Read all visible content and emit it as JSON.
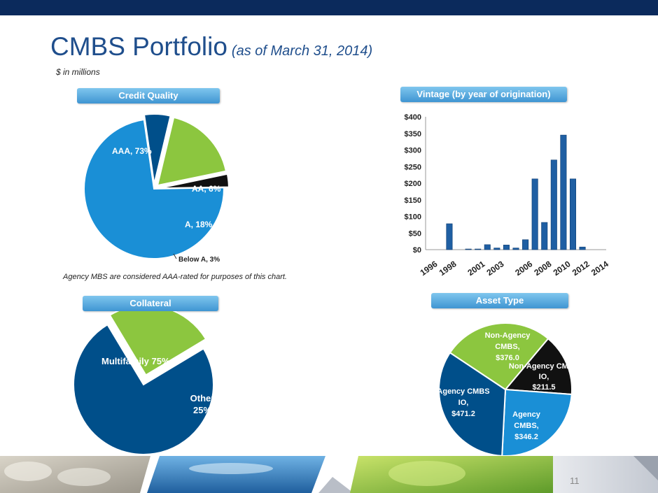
{
  "header": {
    "title": "CMBS Portfolio",
    "subtitle": "(as of March 31, 2014)",
    "units": "$ in millions"
  },
  "sections": {
    "credit_quality": "Credit Quality",
    "vintage": "Vintage (by year of origination)",
    "collateral": "Collateral",
    "asset_type": "Asset Type"
  },
  "notes": {
    "credit_quality": "Agency MBS are considered AAA-rated for purposes of this chart."
  },
  "page_number": "11",
  "colors": {
    "navy": "#0b2a5c",
    "title_blue": "#1f4e8c",
    "sky_blue": "#1a8fd6",
    "dark_blue": "#004f8a",
    "green": "#8cc63f",
    "black": "#111111"
  },
  "chart_data": [
    {
      "id": "credit-quality",
      "type": "pie",
      "slices": [
        {
          "label": "AAA, 73%",
          "value": 73,
          "color": "#1a8fd6"
        },
        {
          "label": "AA, 6%",
          "value": 6,
          "color": "#004f8a"
        },
        {
          "label": "A, 18%",
          "value": 18,
          "color": "#8cc63f"
        },
        {
          "label": "Below A, 3%",
          "value": 3,
          "color": "#111111"
        }
      ]
    },
    {
      "id": "vintage",
      "type": "bar",
      "categories": [
        "1996",
        "1997",
        "1998",
        "1999",
        "2000",
        "2001",
        "2002",
        "2003",
        "2004",
        "2005",
        "2006",
        "2007",
        "2008",
        "2009",
        "2010",
        "2011",
        "2012",
        "2013",
        "2014"
      ],
      "tick_labels": [
        "1996",
        "1998",
        "2001",
        "2003",
        "2006",
        "2008",
        "2010",
        "2012",
        "2014"
      ],
      "values": [
        0,
        0,
        78,
        0,
        2,
        2,
        15,
        5,
        14,
        5,
        30,
        213,
        82,
        270,
        345,
        213,
        8,
        0,
        0
      ],
      "yticks": [
        "$0",
        "$50",
        "$100",
        "$150",
        "$200",
        "$250",
        "$300",
        "$350",
        "$400"
      ],
      "ylim": [
        0,
        400
      ],
      "color": "#1f5fa3"
    },
    {
      "id": "collateral",
      "type": "pie",
      "slices": [
        {
          "label": "Multifamily 75%",
          "value": 75,
          "color": "#004f8a"
        },
        {
          "label": "Other 25%",
          "value": 25,
          "color": "#8cc63f"
        }
      ]
    },
    {
      "id": "asset-type",
      "type": "pie",
      "slices": [
        {
          "label": "Non-Agency CMBS IO, $211.5",
          "value": 211.5,
          "color": "#111111"
        },
        {
          "label": "Agency CMBS, $346.2",
          "value": 346.2,
          "color": "#1a8fd6"
        },
        {
          "label": "Agency CMBS IO, $471.2",
          "value": 471.2,
          "color": "#004f8a"
        },
        {
          "label": "Non-Agency CMBS, $376.0",
          "value": 376.0,
          "color": "#8cc63f"
        }
      ]
    }
  ]
}
